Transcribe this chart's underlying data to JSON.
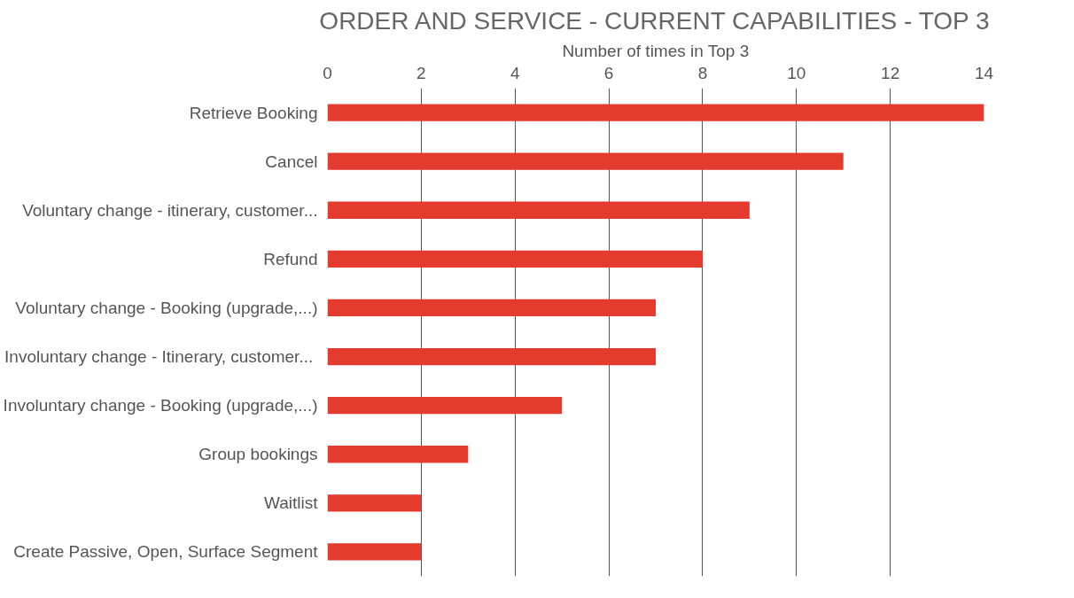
{
  "chart_data": {
    "type": "bar",
    "orientation": "horizontal",
    "title": "ORDER AND SERVICE - CURRENT CAPABILITIES - TOP 3",
    "xlabel": "Number of times in Top 3",
    "categories": [
      "Retrieve Booking",
      "Cancel",
      "Voluntary change - itinerary, customer...",
      "Refund",
      "Voluntary change - Booking (upgrade,...)",
      "Involuntary change  - Itinerary, customer...",
      "Involuntary change - Booking (upgrade,...)",
      "Group bookings",
      "Waitlist",
      "Create Passive, Open, Surface Segment"
    ],
    "values": [
      14,
      11,
      9,
      8,
      7,
      7,
      5,
      3,
      2,
      2
    ],
    "color": "#e53a2e",
    "xlim": [
      0,
      14
    ],
    "xticks": [
      0,
      2,
      4,
      6,
      8,
      10,
      12,
      14
    ],
    "grid": "x"
  }
}
